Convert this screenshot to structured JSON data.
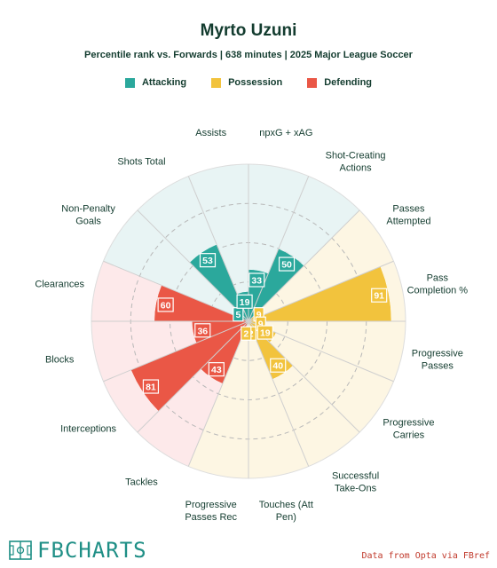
{
  "header": {
    "title": "Myrto Uzuni",
    "subtitle": "Percentile rank vs. Forwards | 638 minutes | 2025 Major League Soccer"
  },
  "legend": [
    {
      "label": "Attacking",
      "color": "#2ba89c"
    },
    {
      "label": "Possession",
      "color": "#f2c33d"
    },
    {
      "label": "Defending",
      "color": "#ea5746"
    }
  ],
  "colors": {
    "attacking_fill": "#2ba89c",
    "possession_fill": "#f2c33d",
    "defending_fill": "#ea5746",
    "attacking_bg": "#e8f4f4",
    "possession_bg": "#fdf6e3",
    "defending_bg": "#fde9ea",
    "label_text": "#133c2f"
  },
  "chart_data": {
    "type": "radar",
    "scale": [
      0,
      100
    ],
    "metrics": [
      {
        "label": "npxG + xAG",
        "group": "Attacking",
        "value": 33
      },
      {
        "label": "Shot-Creating Actions",
        "group": "Attacking",
        "value": 50
      },
      {
        "label": "Passes Attempted",
        "group": "Possession",
        "value": 9
      },
      {
        "label": "Pass Completion %",
        "group": "Possession",
        "value": 91
      },
      {
        "label": "Progressive Passes",
        "group": "Possession",
        "value": 9
      },
      {
        "label": "Progressive Carries",
        "group": "Possession",
        "value": 19
      },
      {
        "label": "Successful Take-Ons",
        "group": "Possession",
        "value": 40
      },
      {
        "label": "Touches (Att Pen)",
        "group": "Possession",
        "value": 2
      },
      {
        "label": "Progressive Passes Rec",
        "group": "Possession",
        "value": 2
      },
      {
        "label": "Tackles",
        "group": "Defending",
        "value": 43
      },
      {
        "label": "Interceptions",
        "group": "Defending",
        "value": 81
      },
      {
        "label": "Blocks",
        "group": "Defending",
        "value": 36
      },
      {
        "label": "Clearances",
        "group": "Defending",
        "value": 60
      },
      {
        "label": "Non-Penalty Goals",
        "group": "Attacking",
        "value": 5
      },
      {
        "label": "Shots Total",
        "group": "Attacking",
        "value": 53
      },
      {
        "label": "Assists",
        "group": "Attacking",
        "value": 19
      }
    ]
  },
  "brand": {
    "name": "FBCHARTS"
  },
  "footer": {
    "source": "Data from Opta via FBref"
  }
}
